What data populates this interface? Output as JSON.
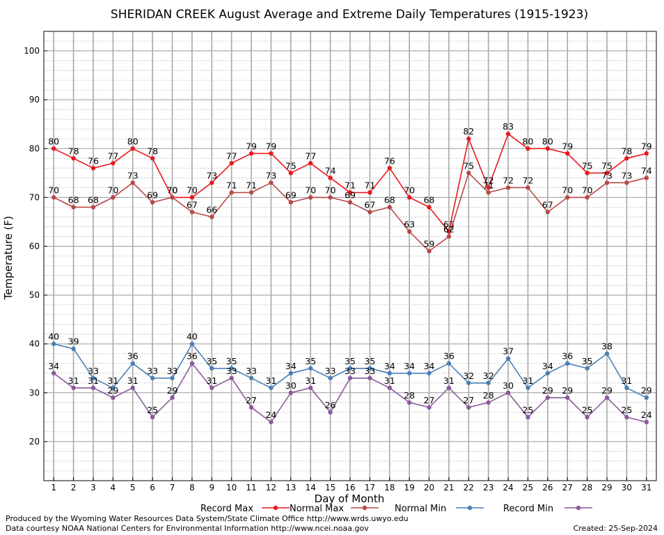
{
  "chart_data": {
    "type": "line",
    "title": "SHERIDAN CREEK August Average and Extreme Daily Temperatures (1915-1923)",
    "xlabel": "Day of Month",
    "ylabel": "Temperature (F)",
    "x": [
      1,
      2,
      3,
      4,
      5,
      6,
      7,
      8,
      9,
      10,
      11,
      12,
      13,
      14,
      15,
      16,
      17,
      18,
      19,
      20,
      21,
      22,
      23,
      24,
      25,
      26,
      27,
      28,
      29,
      30,
      31
    ],
    "xlim": [
      0.5,
      31.5
    ],
    "ylim": [
      12,
      104
    ],
    "yticks": [
      20,
      30,
      40,
      50,
      60,
      70,
      80,
      90,
      100
    ],
    "grid": true,
    "legend_position": "bottom",
    "series": [
      {
        "name": "Record Max",
        "color": "#e8191e",
        "values": [
          80,
          78,
          76,
          77,
          80,
          78,
          70,
          70,
          73,
          77,
          79,
          79,
          75,
          77,
          74,
          71,
          71,
          76,
          70,
          68,
          63,
          82,
          72,
          83,
          80,
          80,
          79,
          75,
          75,
          78,
          79
        ]
      },
      {
        "name": "Normal Max",
        "color": "#b84848",
        "values": [
          70,
          68,
          68,
          70,
          73,
          69,
          70,
          67,
          66,
          71,
          71,
          73,
          69,
          70,
          70,
          69,
          67,
          68,
          63,
          59,
          62,
          75,
          71,
          72,
          72,
          67,
          70,
          70,
          73,
          73,
          74
        ]
      },
      {
        "name": "Normal Min",
        "color": "#4a7fb5",
        "values": [
          40,
          39,
          33,
          31,
          36,
          33,
          33,
          40,
          35,
          35,
          33,
          31,
          34,
          35,
          33,
          35,
          35,
          34,
          34,
          34,
          36,
          32,
          32,
          37,
          31,
          34,
          36,
          35,
          38,
          31,
          29
        ]
      },
      {
        "name": "Record Min",
        "color": "#8a5a9a",
        "values": [
          34,
          31,
          31,
          29,
          31,
          25,
          29,
          36,
          31,
          33,
          27,
          24,
          30,
          31,
          26,
          33,
          33,
          31,
          28,
          27,
          31,
          27,
          28,
          30,
          25,
          29,
          29,
          25,
          29,
          25,
          24
        ]
      }
    ]
  },
  "footer": {
    "produced_by": "Produced by the Wyoming Water Resources Data System/State Climate Office http://www.wrds.uwyo.edu",
    "courtesy": "Data courtesy NOAA National Centers for Environmental Information http://www.ncei.noaa.gov",
    "created": "Created:  25-Sep-2024"
  }
}
